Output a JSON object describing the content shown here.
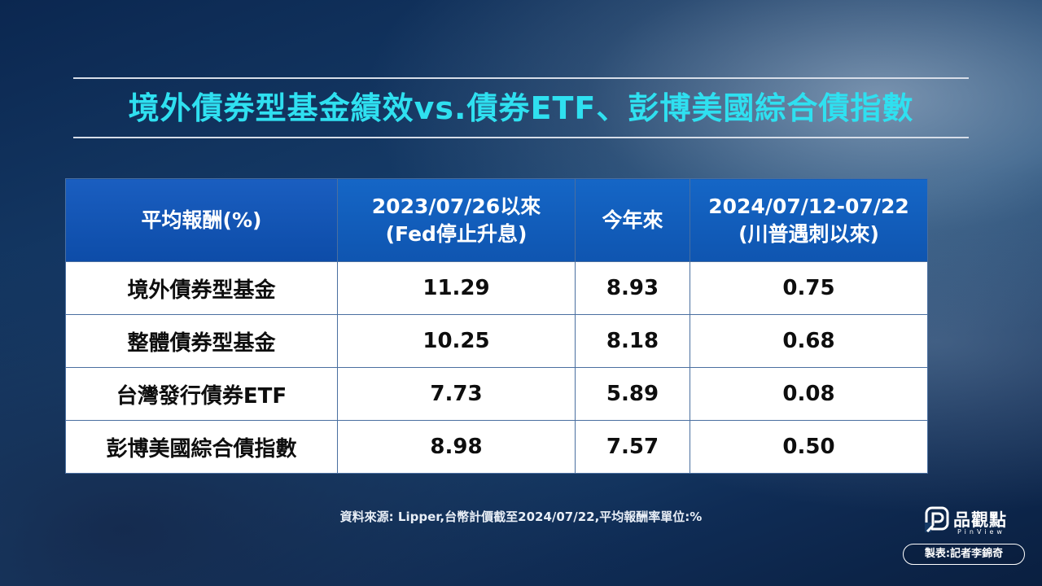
{
  "title": "境外債券型基金績效vs.債券ETF、彭博美國綜合債指數",
  "table": {
    "headers": [
      {
        "lines": [
          "平均報酬(%)"
        ]
      },
      {
        "lines": [
          "2023/07/26以來",
          "(Fed停止升息)"
        ]
      },
      {
        "lines": [
          "今年來"
        ]
      },
      {
        "lines": [
          "2024/07/12-07/22",
          "(川普遇刺以來)"
        ]
      }
    ],
    "rows": [
      {
        "label": "境外債券型基金",
        "values": [
          "11.29",
          "8.93",
          "0.75"
        ]
      },
      {
        "label": "整體債券型基金",
        "values": [
          "10.25",
          "8.18",
          "0.68"
        ]
      },
      {
        "label": "台灣發行債券ETF",
        "values": [
          "7.73",
          "5.89",
          "0.08"
        ]
      },
      {
        "label": "彭博美國綜合債指數",
        "values": [
          "8.98",
          "7.57",
          "0.50"
        ]
      }
    ]
  },
  "footer": {
    "source": "資料來源: Lipper,台幣計價截至2024/07/22,平均報酬率單位:%",
    "brand_name": "品觀點",
    "brand_sub": "PinView",
    "credit": "製表:記者李錦奇"
  },
  "colors": {
    "title": "#2fe0f0",
    "header_bg": "#1566c6",
    "cell_bg": "#ffffff"
  },
  "icons": {
    "brand_logo": "pinview-logo-icon"
  }
}
